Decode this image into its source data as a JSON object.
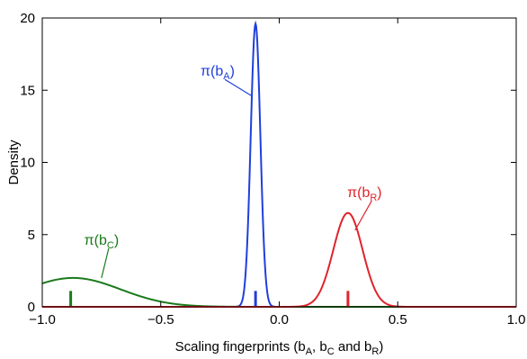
{
  "chart_data": {
    "type": "line",
    "xlabel": {
      "prefix": "Scaling fingerprints (b",
      "sub1": "A",
      "mid1": ", b",
      "sub2": "C",
      "mid2": " and b",
      "sub3": "R",
      "suffix": ")"
    },
    "ylabel": "Density",
    "xlim": [
      -1.0,
      1.0
    ],
    "ylim": [
      0,
      20
    ],
    "xticks": [
      -1.0,
      -0.5,
      0.0,
      0.5,
      1.0
    ],
    "xtick_labels": [
      "−1.0",
      "−0.5",
      "0.0",
      "0.5",
      "1.0"
    ],
    "yticks": [
      0,
      5,
      10,
      15,
      20
    ],
    "ytick_labels": [
      "0",
      "5",
      "10",
      "15",
      "20"
    ],
    "grid": false,
    "legend": "none",
    "series": [
      {
        "label_base": "π(b",
        "label_sub": "A",
        "label_close": ")",
        "color": "#1f3fdc",
        "mean": -0.1,
        "sd": 0.0203,
        "peak": 19.6,
        "marker_x": -0.1,
        "marker_height": 1.1,
        "label_pos": [
          -0.26,
          16.0
        ],
        "leader_end": [
          -0.116,
          14.6
        ]
      },
      {
        "label_base": "π(b",
        "label_sub": "C",
        "label_close": ")",
        "color": "#1a7a1a",
        "mean": -0.87,
        "sd": 0.2,
        "peak": 2.0,
        "marker_x": -0.88,
        "marker_height": 1.1,
        "label_pos": [
          -0.75,
          4.3
        ],
        "leader_end": [
          -0.75,
          2.0
        ]
      },
      {
        "label_base": "π(b",
        "label_sub": "R",
        "label_close": ")",
        "color": "#e0232b",
        "mean": 0.29,
        "sd": 0.0619,
        "peak": 6.5,
        "marker_x": 0.29,
        "marker_height": 1.1,
        "label_pos": [
          0.36,
          7.6
        ],
        "leader_end": [
          0.32,
          5.3
        ]
      }
    ]
  }
}
